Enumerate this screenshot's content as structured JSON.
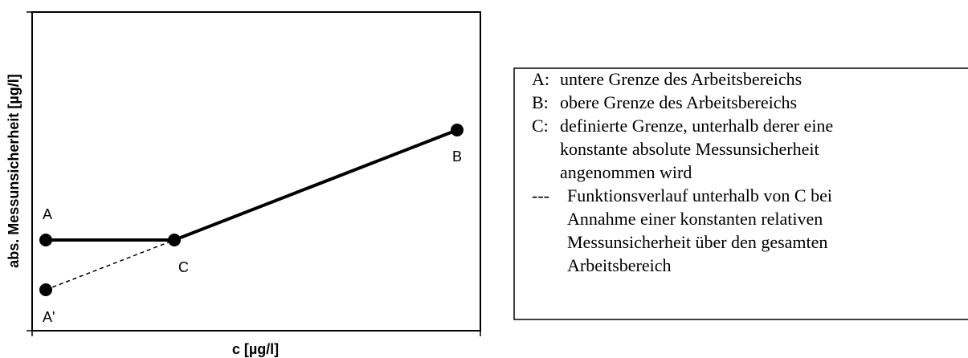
{
  "axes": {
    "y_label": "abs. Messunsicherheit [µg/l]",
    "x_label": "c [µg/l]"
  },
  "points": [
    {
      "label": "A"
    },
    {
      "label": "C"
    },
    {
      "label": "B"
    },
    {
      "label": "A'"
    }
  ],
  "legend": {
    "items": [
      {
        "key": "A:",
        "lines": [
          "untere Grenze des Arbeitsbereichs"
        ]
      },
      {
        "key": "B:",
        "lines": [
          "obere Grenze des Arbeitsbereichs"
        ]
      },
      {
        "key": "C:",
        "lines": [
          "definierte Grenze, unterhalb derer eine",
          "konstante absolute Messunsicherheit",
          "angenommen wird"
        ]
      },
      {
        "key": "---",
        "lines": [
          "Funktionsverlauf unterhalb von C bei",
          "Annahme einer konstanten relativen",
          "Messunsicherheit über den gesamten",
          "Arbeitsbereich"
        ]
      }
    ]
  }
}
